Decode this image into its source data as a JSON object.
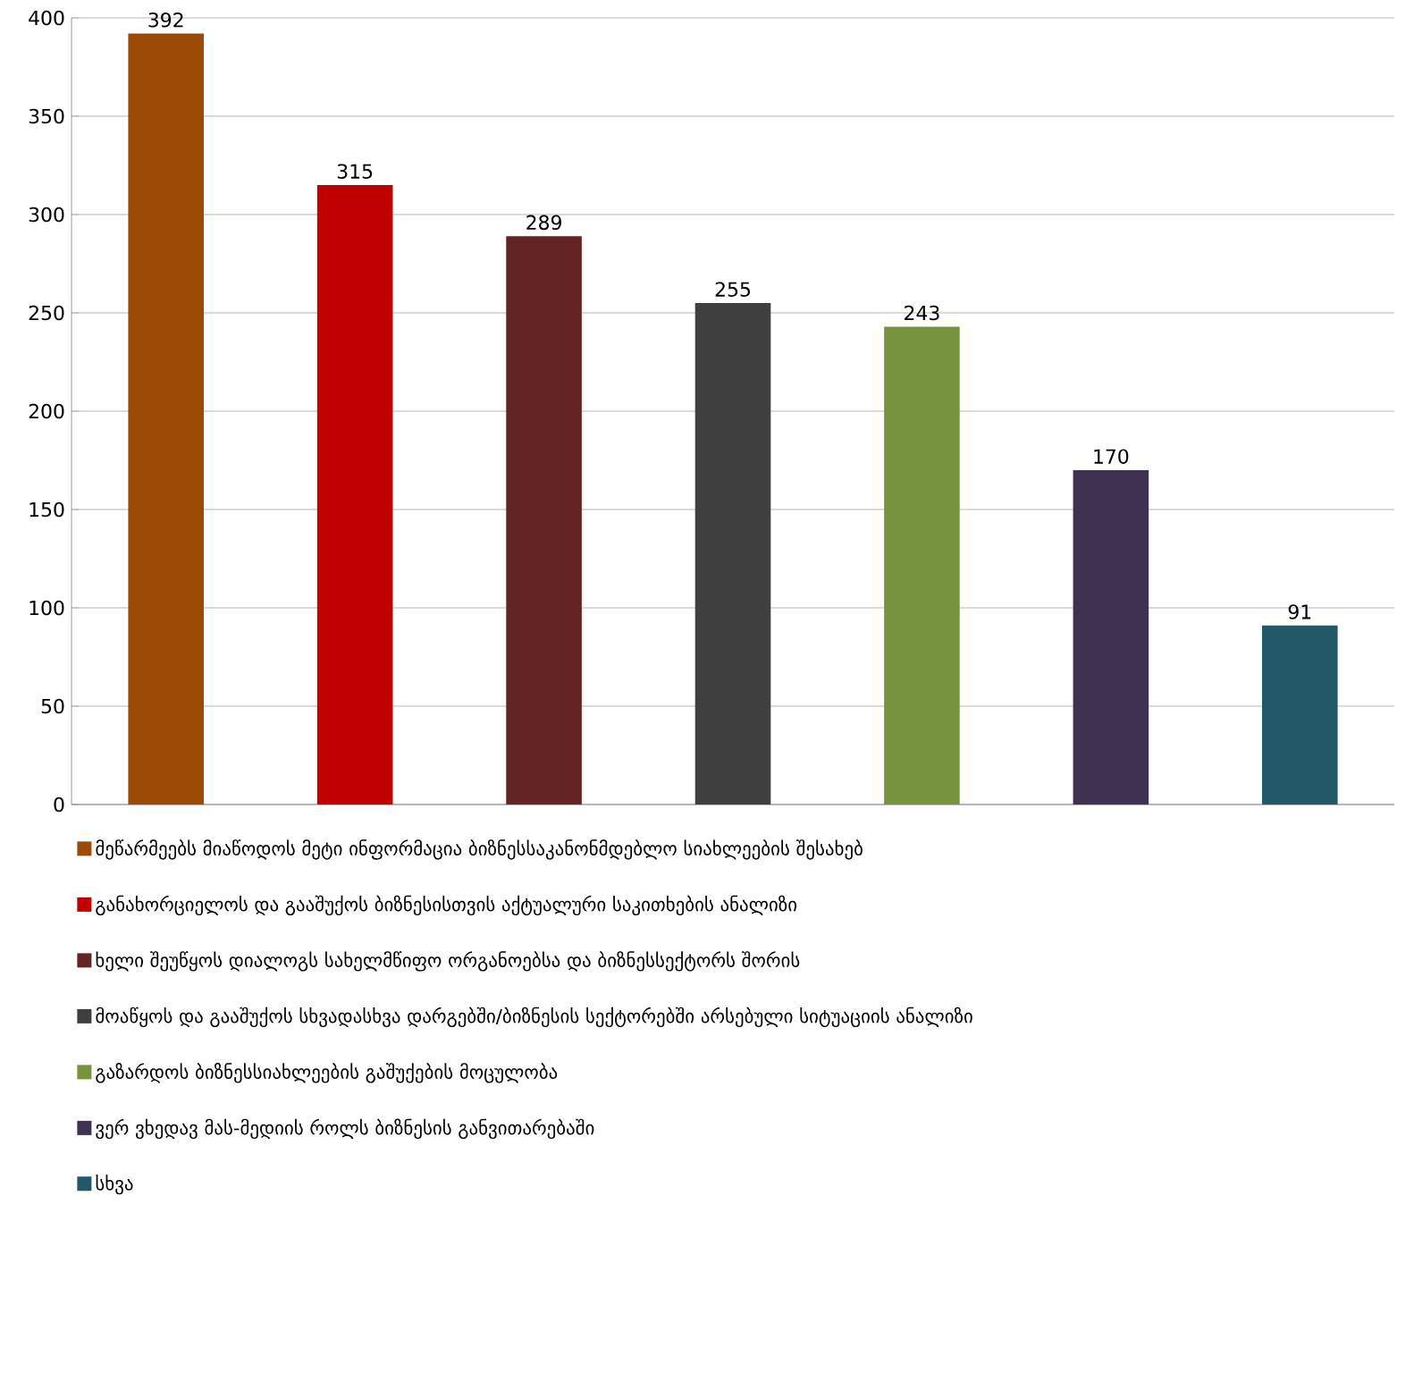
{
  "chart_data": {
    "type": "bar",
    "categories": [
      null,
      null,
      null,
      null,
      null,
      null,
      null
    ],
    "series": [
      {
        "name": "მეწარმეებს მიაწოდოს მეტი ინფორმაცია ბიზნესსაკანონმდებლო სიახლეების შესახებ",
        "color": "#9c4a06",
        "values": [
          392,
          null,
          null,
          null,
          null,
          null,
          null
        ]
      },
      {
        "name": "განახორციელოს და გააშუქოს ბიზნესისთვის აქტუალური საკითხების ანალიზი",
        "color": "#c00000",
        "values": [
          null,
          315,
          null,
          null,
          null,
          null,
          null
        ]
      },
      {
        "name": "ხელი შეუწყოს დიალოგს სახელმწიფო ორგანოებსა და ბიზნესსექტორს შორის",
        "color": "#632523",
        "values": [
          null,
          null,
          289,
          null,
          null,
          null,
          null
        ]
      },
      {
        "name": "მოაწყოს და გააშუქოს სხვადასხვა დარგებში/ბიზნესის სექტორებში არსებული სიტუაციის ანალიზი",
        "color": "#3f3f3f",
        "values": [
          null,
          null,
          null,
          255,
          null,
          null,
          null
        ]
      },
      {
        "name": "გაზარდოს ბიზნესსიახლეების  გაშუქების მოცულობა",
        "color": "#77933c",
        "values": [
          null,
          null,
          null,
          null,
          243,
          null,
          null
        ]
      },
      {
        "name": "ვერ ვხედავ მას-მედიის როლს ბიზნესის განვითარებაში",
        "color": "#3f3151",
        "values": [
          null,
          null,
          null,
          null,
          null,
          170,
          null
        ]
      },
      {
        "name": "სხვა",
        "color": "#215968",
        "values": [
          null,
          null,
          null,
          null,
          null,
          null,
          91
        ]
      }
    ],
    "ylim": [
      0,
      400
    ],
    "yticks": [
      0,
      50,
      100,
      150,
      200,
      250,
      300,
      350,
      400
    ],
    "grid": "y",
    "legend": "bottom",
    "data_labels": true,
    "tick_labels": "y"
  }
}
